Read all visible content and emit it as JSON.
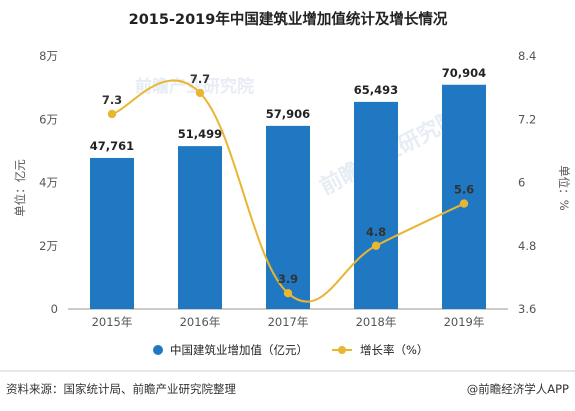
{
  "chart_data": {
    "type": "bar",
    "title": "2015-2019年中国建筑业增加值统计及增长情况",
    "categories": [
      "2015年",
      "2016年",
      "2017年",
      "2018年",
      "2019年"
    ],
    "series": [
      {
        "name": "中国建筑业增加值（亿元）",
        "type": "bar",
        "axis": "left",
        "values": [
          47761,
          51499,
          57906,
          65493,
          70904
        ],
        "labels": [
          "47,761",
          "51,499",
          "57,906",
          "65,493",
          "70,904"
        ],
        "color": "#1f78c1"
      },
      {
        "name": "增长率（%）",
        "type": "line",
        "axis": "right",
        "values": [
          7.3,
          7.7,
          3.9,
          4.8,
          5.6
        ],
        "labels": [
          "7.3",
          "7.7",
          "3.9",
          "4.8",
          "5.6"
        ],
        "color": "#e8b631",
        "smooth": true
      }
    ],
    "y_left": {
      "label": "单位：亿元",
      "range": [
        0,
        80000
      ],
      "ticks": [
        0,
        20000,
        40000,
        60000,
        80000
      ],
      "tick_labels": [
        "0",
        "2万",
        "4万",
        "6万",
        "8万"
      ]
    },
    "y_right": {
      "label": "单位：%",
      "range": [
        3.6,
        8.4
      ],
      "ticks": [
        3.6,
        4.8,
        6,
        7.2,
        8.4
      ],
      "tick_labels": [
        "3.6",
        "4.8",
        "6",
        "7.2",
        "8.4"
      ]
    },
    "grid": false,
    "legend_position": "bottom"
  },
  "footer": {
    "source": "资料来源：国家统计局、前瞻产业研究院整理",
    "brand": "@前瞻经济学人APP"
  },
  "watermark": "前瞻产业研究院"
}
